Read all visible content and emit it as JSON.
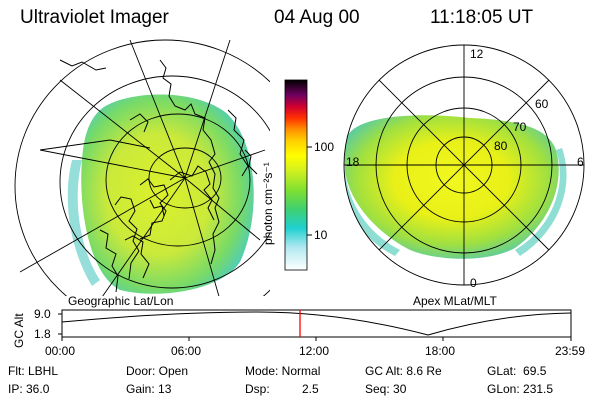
{
  "header": {
    "instrument": "Ultraviolet Imager",
    "date": "04 Aug 00",
    "time": "11:18:05 UT"
  },
  "left_panel": {
    "caption": "Geographic Lat/Lon",
    "projection": "geographic"
  },
  "right_panel": {
    "caption": "Apex MLat/MLT",
    "mlt_labels": {
      "top": "12",
      "bottom": "0",
      "left": "18",
      "right": "6"
    },
    "lat_labels": [
      "80",
      "70",
      "60"
    ]
  },
  "colorbar": {
    "unit": "photon cm⁻²s⁻¹",
    "ticks": [
      "100",
      "10"
    ],
    "scale": "log",
    "colors": [
      "#ffffff",
      "#20d0d0",
      "#60e040",
      "#d0f020",
      "#ffff00",
      "#ffa000",
      "#ff2000",
      "#c00040",
      "#500070",
      "#000000"
    ]
  },
  "timeline": {
    "ylabel": "GC Alt",
    "y_ticks": [
      "9.0",
      "1.8"
    ],
    "x_ticks": [
      "00:00",
      "06:00",
      "12:00",
      "18:00",
      "23:59"
    ],
    "marker_time": "11:18",
    "marker_color": "#ff0000"
  },
  "info": {
    "flt": "Flt: LBHL",
    "ip": "IP: 36.0",
    "door": "Door: Open",
    "gain": "Gain: 13",
    "mode": "Mode: Normal",
    "dsp_label": "Dsp:",
    "dsp_value": "2.5",
    "gc_alt": "GC Alt: 8.6 Re",
    "seq": "Seq: 30",
    "glat": "GLat:  69.5",
    "glon": "GLon: 231.5"
  }
}
